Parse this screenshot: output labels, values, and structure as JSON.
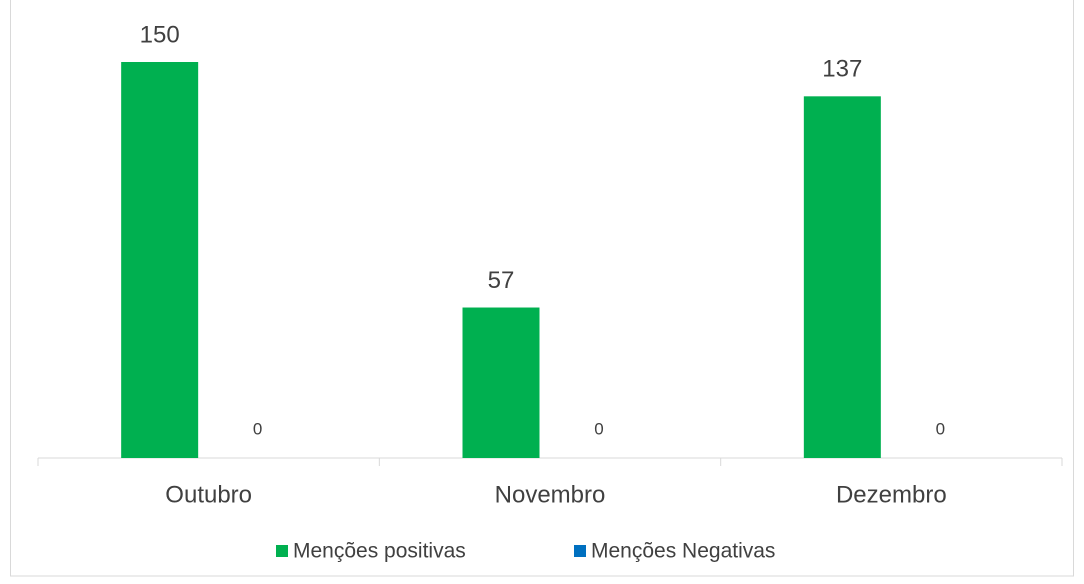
{
  "chart_data": {
    "type": "bar",
    "categories": [
      "Outubro",
      "Novembro",
      "Dezembro"
    ],
    "series": [
      {
        "name": "Menções positivas",
        "color": "#00b050",
        "values": [
          150,
          57,
          137
        ]
      },
      {
        "name": "Menções Negativas",
        "color": "#0070c0",
        "values": [
          0,
          0,
          0
        ]
      }
    ],
    "ylim": [
      0,
      160
    ],
    "grid": false,
    "legend": "bottom"
  }
}
